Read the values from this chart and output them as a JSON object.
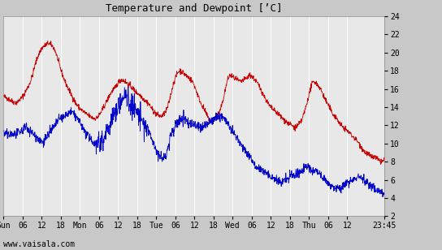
{
  "title": "Temperature and Dewpoint [’C]",
  "ylabel_right_ticks": [
    2,
    4,
    6,
    8,
    10,
    12,
    14,
    16,
    18,
    20,
    22,
    24
  ],
  "ylim": [
    2,
    24
  ],
  "fig_bg_color": "#c8c8c8",
  "plot_bg_color": "#e8e8e8",
  "grid_color": "#ffffff",
  "temp_color": "#cc0000",
  "dew_color": "#0000cc",
  "watermark": "www.vaisala.com",
  "x_tick_labels": [
    "Sun",
    "06",
    "12",
    "18",
    "Mon",
    "06",
    "12",
    "18",
    "Tue",
    "06",
    "12",
    "18",
    "Wed",
    "06",
    "12",
    "18",
    "Thu",
    "06",
    "12",
    "23:45"
  ],
  "x_tick_positions": [
    0,
    6,
    12,
    18,
    24,
    30,
    36,
    42,
    48,
    54,
    60,
    66,
    72,
    78,
    84,
    90,
    96,
    102,
    108,
    119.75
  ],
  "x_total_hours": 119.75,
  "temp_data": [
    15.2,
    15.0,
    14.8,
    14.6,
    14.5,
    14.8,
    15.2,
    15.8,
    16.5,
    17.5,
    18.8,
    19.8,
    20.5,
    20.8,
    21.0,
    20.8,
    20.3,
    19.2,
    18.0,
    17.0,
    16.2,
    15.5,
    14.8,
    14.2,
    13.8,
    13.5,
    13.2,
    13.0,
    12.8,
    12.8,
    13.2,
    13.8,
    14.5,
    15.2,
    15.8,
    16.2,
    16.8,
    17.0,
    16.8,
    16.5,
    16.2,
    15.8,
    15.5,
    15.2,
    14.8,
    14.5,
    14.0,
    13.5,
    13.2,
    13.0,
    13.2,
    13.8,
    15.0,
    16.5,
    17.5,
    18.0,
    17.8,
    17.5,
    17.2,
    16.8,
    16.0,
    15.0,
    14.2,
    13.5,
    12.8,
    12.5,
    12.8,
    13.2,
    14.0,
    15.5,
    17.0,
    17.5,
    17.2,
    17.0,
    16.8,
    17.0,
    17.2,
    17.5,
    17.2,
    16.8,
    16.2,
    15.5,
    14.8,
    14.2,
    13.8,
    13.5,
    13.2,
    12.8,
    12.5,
    12.2,
    12.0,
    11.8,
    12.0,
    12.5,
    13.5,
    14.8,
    16.2,
    16.8,
    16.5,
    16.0,
    15.2,
    14.5,
    13.8,
    13.2,
    12.8,
    12.2,
    11.8,
    11.5,
    11.2,
    10.8,
    10.5,
    10.0,
    9.5,
    9.0,
    8.8,
    8.5,
    8.5,
    8.2,
    8.0,
    8.3
  ],
  "dew_data": [
    11.2,
    11.0,
    11.0,
    11.0,
    11.0,
    11.2,
    11.5,
    11.8,
    11.5,
    11.2,
    10.8,
    10.5,
    10.2,
    10.5,
    11.0,
    11.5,
    12.0,
    12.5,
    12.8,
    13.0,
    13.2,
    13.5,
    13.2,
    12.8,
    12.2,
    11.5,
    11.0,
    10.5,
    10.2,
    10.0,
    10.2,
    10.5,
    11.2,
    12.0,
    12.8,
    13.5,
    14.2,
    14.8,
    15.2,
    14.8,
    14.2,
    13.8,
    13.2,
    12.5,
    12.0,
    11.5,
    10.8,
    10.0,
    9.0,
    8.5,
    8.5,
    9.0,
    10.5,
    11.5,
    12.2,
    12.5,
    12.8,
    12.5,
    12.2,
    12.2,
    12.0,
    11.8,
    11.8,
    12.0,
    12.2,
    12.5,
    12.8,
    13.0,
    13.0,
    12.8,
    12.2,
    11.5,
    11.0,
    10.5,
    10.0,
    9.5,
    9.0,
    8.5,
    8.0,
    7.5,
    7.2,
    7.0,
    6.8,
    6.5,
    6.2,
    6.0,
    5.8,
    5.8,
    6.0,
    6.2,
    6.5,
    6.5,
    6.8,
    7.0,
    7.2,
    7.5,
    7.2,
    7.0,
    6.8,
    6.5,
    6.2,
    5.8,
    5.5,
    5.2,
    5.0,
    5.0,
    5.2,
    5.5,
    5.8,
    6.0,
    6.2,
    6.5,
    6.2,
    5.8,
    5.5,
    5.2,
    5.0,
    4.8,
    4.7,
    4.5
  ],
  "noise_seed": 42
}
